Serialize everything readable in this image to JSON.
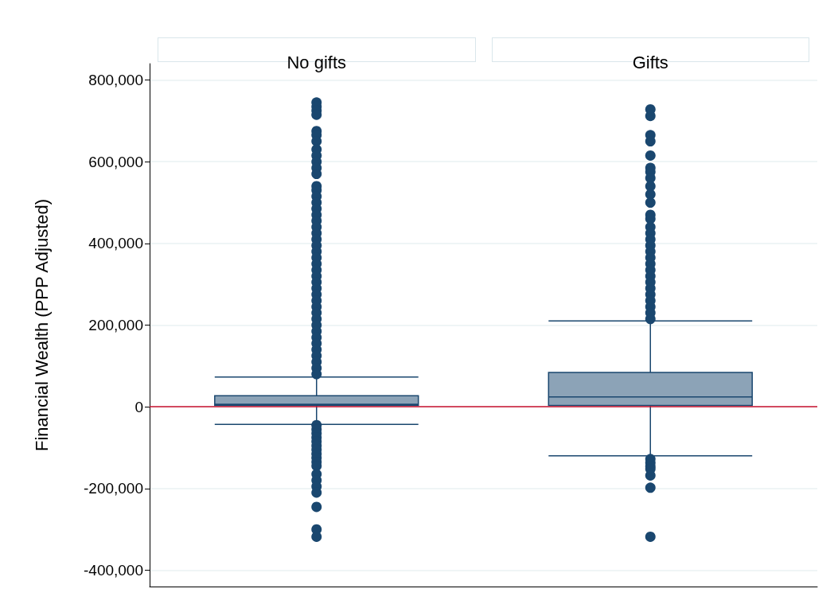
{
  "chart_data": {
    "type": "box",
    "ylabel": "Financial Wealth (PPP Adjusted)",
    "categories": [
      "No gifts",
      "Gifts"
    ],
    "ylim": [
      -440000,
      840000
    ],
    "yticks": [
      {
        "value": -400000,
        "label": "-400,000"
      },
      {
        "value": -200000,
        "label": "-200,000"
      },
      0,
      {
        "value": 200000,
        "label": "200,000"
      },
      {
        "value": 400000,
        "label": "400,000"
      },
      {
        "value": 600000,
        "label": "600,000"
      },
      {
        "value": 800000,
        "label": "800,000"
      }
    ],
    "grid": "y",
    "marker": "circle",
    "ref_lines": [
      {
        "axis": "y",
        "value": 0,
        "color": "#c8102e"
      }
    ],
    "series": [
      {
        "color": "#1a476f",
        "boxes": [
          {
            "low": -43000,
            "q1": 3000,
            "median": 6000,
            "q3": 27000,
            "high": 73000,
            "outliers": [
              745000,
              735000,
              725000,
              715000,
              675000,
              665000,
              650000,
              630000,
              615000,
              600000,
              585000,
              570000,
              540000,
              530000,
              515000,
              500000,
              485000,
              470000,
              455000,
              440000,
              425000,
              410000,
              395000,
              380000,
              365000,
              350000,
              335000,
              320000,
              305000,
              290000,
              275000,
              260000,
              245000,
              230000,
              215000,
              200000,
              185000,
              170000,
              155000,
              140000,
              125000,
              110000,
              95000,
              80000,
              -45000,
              -55000,
              -65000,
              -75000,
              -85000,
              -95000,
              -105000,
              -115000,
              -125000,
              -135000,
              -145000,
              -165000,
              -180000,
              -195000,
              -210000,
              -245000,
              -300000,
              -318000
            ]
          },
          {
            "low": -120000,
            "q1": 3000,
            "median": 24000,
            "q3": 84000,
            "high": 210000,
            "outliers": [
              728000,
              712000,
              665000,
              650000,
              615000,
              585000,
              575000,
              560000,
              540000,
              520000,
              500000,
              470000,
              460000,
              440000,
              425000,
              410000,
              395000,
              380000,
              365000,
              350000,
              335000,
              320000,
              305000,
              290000,
              275000,
              260000,
              245000,
              230000,
              215000,
              -128000,
              -137000,
              -146000,
              -152000,
              -168000,
              -198000,
              -318000
            ]
          }
        ]
      }
    ]
  }
}
